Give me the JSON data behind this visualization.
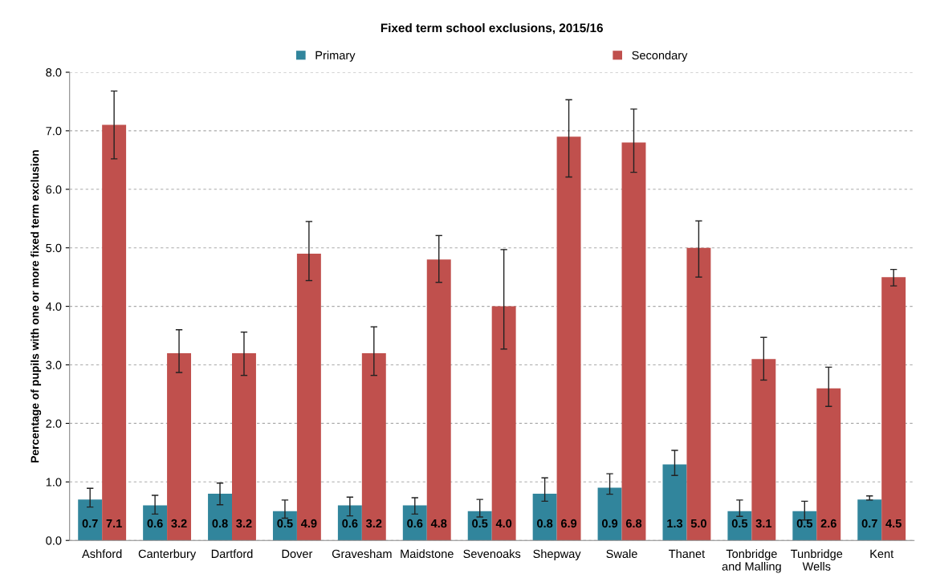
{
  "chart_data": {
    "type": "bar",
    "title": "Fixed term school exclusions, 2015/16",
    "ylabel": "Percentage of pupils with one or more fixed term exclusion",
    "categories": [
      "Ashford",
      "Canterbury",
      "Dartford",
      "Dover",
      "Gravesham",
      "Maidstone",
      "Sevenoaks",
      "Shepway",
      "Swale",
      "Thanet",
      "Tonbridge\nand Malling",
      "Tunbridge\nWells",
      "Kent"
    ],
    "series": [
      {
        "name": "Primary",
        "color": "#31859c",
        "values": [
          0.7,
          0.6,
          0.8,
          0.5,
          0.6,
          0.6,
          0.5,
          0.8,
          0.9,
          1.3,
          0.5,
          0.5,
          0.7
        ],
        "value_labels": [
          "0.7",
          "0.6",
          "0.8",
          "0.5",
          "0.6",
          "0.6",
          "0.5",
          "0.8",
          "0.9",
          "1.3",
          "0.5",
          "0.5",
          "0.7"
        ],
        "errors": [
          [
            0.57,
            0.89
          ],
          [
            0.45,
            0.77
          ],
          [
            0.61,
            0.98
          ],
          [
            0.38,
            0.69
          ],
          [
            0.42,
            0.74
          ],
          [
            0.45,
            0.73
          ],
          [
            0.4,
            0.7
          ],
          [
            0.67,
            1.07
          ],
          [
            0.79,
            1.14
          ],
          [
            1.11,
            1.54
          ],
          [
            0.41,
            0.69
          ],
          [
            0.35,
            0.67
          ],
          [
            0.69,
            0.76
          ]
        ]
      },
      {
        "name": "Secondary",
        "color": "#c0504d",
        "values": [
          7.1,
          3.2,
          3.2,
          4.9,
          3.2,
          4.8,
          4.0,
          6.9,
          6.8,
          5.0,
          3.1,
          2.6,
          4.5
        ],
        "value_labels": [
          "7.1",
          "3.2",
          "3.2",
          "4.9",
          "3.2",
          "4.8",
          "4.0",
          "6.9",
          "6.8",
          "5.0",
          "3.1",
          "2.6",
          "4.5"
        ],
        "errors": [
          [
            6.52,
            7.68
          ],
          [
            2.87,
            3.6
          ],
          [
            2.82,
            3.56
          ],
          [
            4.44,
            5.45
          ],
          [
            2.82,
            3.65
          ],
          [
            4.41,
            5.21
          ],
          [
            3.27,
            4.97
          ],
          [
            6.21,
            7.53
          ],
          [
            6.29,
            7.37
          ],
          [
            4.5,
            5.46
          ],
          [
            2.74,
            3.47
          ],
          [
            2.29,
            2.96
          ],
          [
            4.35,
            4.63
          ]
        ]
      }
    ],
    "ylim": [
      0,
      8
    ],
    "yticks": [
      {
        "value": 0,
        "label": "0.0"
      },
      {
        "value": 1,
        "label": "1.0"
      },
      {
        "value": 2,
        "label": "2.0"
      },
      {
        "value": 3,
        "label": "3.0"
      },
      {
        "value": 4,
        "label": "4.0"
      },
      {
        "value": 5,
        "label": "5.0"
      },
      {
        "value": 6,
        "label": "6.0"
      },
      {
        "value": 7,
        "label": "7.0"
      },
      {
        "value": 8,
        "label": "8.0"
      }
    ],
    "grid": "y",
    "legend": "top"
  }
}
